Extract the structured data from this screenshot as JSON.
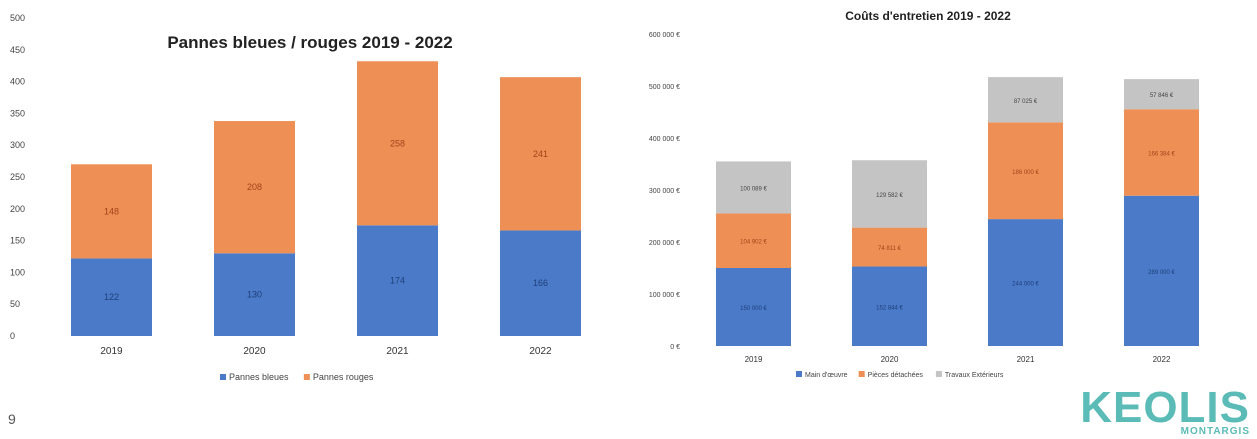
{
  "page_number": "9",
  "logo": {
    "name": "Keolis",
    "sub": "MONTARGIS",
    "color": "#5bbbb7"
  },
  "colors": {
    "blue": "#4a7ac8",
    "orange": "#ee9055",
    "grey": "#c4c4c4"
  },
  "chart_data": [
    {
      "type": "bar",
      "stacked": true,
      "title": "Pannes bleues / rouges 2019 - 2022",
      "categories": [
        "2019",
        "2020",
        "2021",
        "2022"
      ],
      "series": [
        {
          "name": "Pannes bleues",
          "values": [
            122,
            130,
            174,
            166
          ],
          "labels": [
            "122",
            "130",
            "174",
            "166"
          ],
          "color": "#4a7ac8"
        },
        {
          "name": "Pannes rouges",
          "values": [
            148,
            208,
            258,
            241
          ],
          "labels": [
            "148",
            "208",
            "258",
            "241"
          ],
          "color": "#ee9055"
        }
      ],
      "ylim": [
        0,
        500
      ],
      "yticks": [
        0,
        50,
        100,
        150,
        200,
        250,
        300,
        350,
        400,
        450,
        500
      ],
      "ytick_labels": [
        "0",
        "50",
        "100",
        "150",
        "200",
        "250",
        "300",
        "350",
        "400",
        "450",
        "500"
      ],
      "grid": false,
      "legend": "bottom"
    },
    {
      "type": "bar",
      "stacked": true,
      "title": "Coûts d'entretien 2019 - 2022",
      "categories": [
        "2019",
        "2020",
        "2021",
        "2022"
      ],
      "series": [
        {
          "name": "Main d'œuvre",
          "values": [
            150000,
            152844,
            244000,
            289000
          ],
          "labels": [
            "150 000 €",
            "152 844 €",
            "244 000 €",
            "289 000 €"
          ],
          "color": "#4a7ac8"
        },
        {
          "name": "Pièces détachées",
          "values": [
            104902,
            74811,
            186000,
            166384
          ],
          "labels": [
            "104 902 €",
            "74 811 €",
            "186 000 €",
            "166 384 €"
          ],
          "color": "#ee9055"
        },
        {
          "name": "Travaux Extérieurs",
          "values": [
            100089,
            129582,
            87025,
            57846
          ],
          "labels": [
            "100 089 €",
            "129 582 €",
            "87 025 €",
            "57 846 €"
          ],
          "color": "#c4c4c4"
        }
      ],
      "ylim": [
        0,
        600000
      ],
      "yticks": [
        0,
        100000,
        200000,
        300000,
        400000,
        500000,
        600000
      ],
      "ytick_labels": [
        "0 €",
        "100 000 €",
        "200 000 €",
        "300 000 €",
        "400 000 €",
        "500 000 €",
        "600 000 €"
      ],
      "grid": false,
      "legend": "bottom"
    }
  ]
}
